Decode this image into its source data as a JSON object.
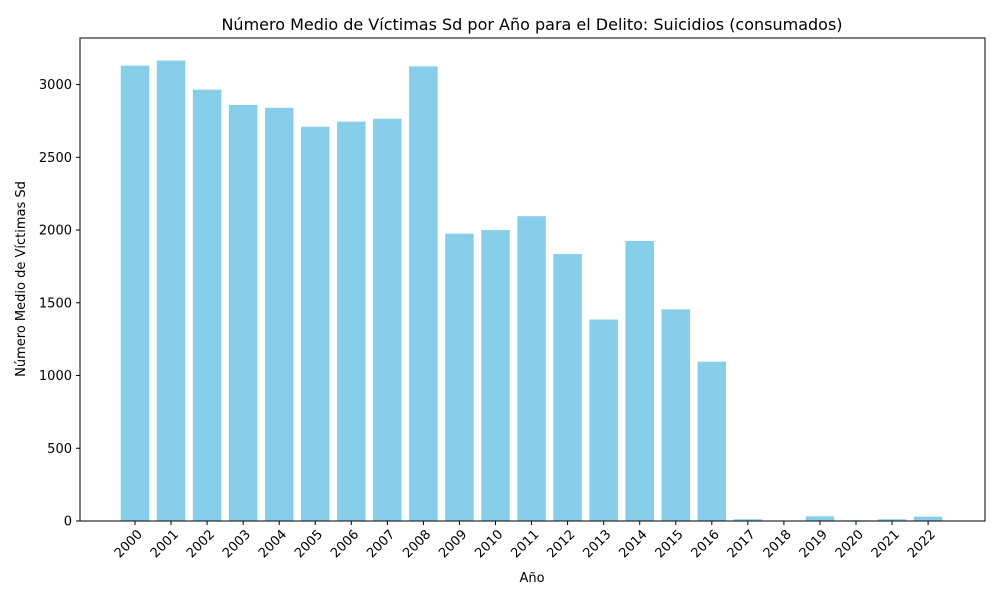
{
  "chart_data": {
    "type": "bar",
    "title": "Número Medio de Víctimas Sd por Año para el Delito: Suicidios (consumados)",
    "xlabel": "Año",
    "ylabel": "Número Medio de Víctimas Sd",
    "categories": [
      "2000",
      "2001",
      "2002",
      "2003",
      "2004",
      "2005",
      "2006",
      "2007",
      "2008",
      "2009",
      "2010",
      "2011",
      "2012",
      "2013",
      "2014",
      "2015",
      "2016",
      "2017",
      "2018",
      "2019",
      "2020",
      "2021",
      "2022"
    ],
    "values": [
      3130,
      3165,
      2965,
      2860,
      2840,
      2710,
      2745,
      2765,
      3125,
      1975,
      2000,
      2095,
      1835,
      1385,
      1925,
      1455,
      1095,
      12,
      2,
      32,
      5,
      12,
      30
    ],
    "ylim": [
      0,
      3320
    ],
    "yticks": [
      0,
      500,
      1000,
      1500,
      2000,
      2500,
      3000
    ],
    "bar_color": "#87ceeb",
    "grid": false,
    "legend": "none"
  }
}
